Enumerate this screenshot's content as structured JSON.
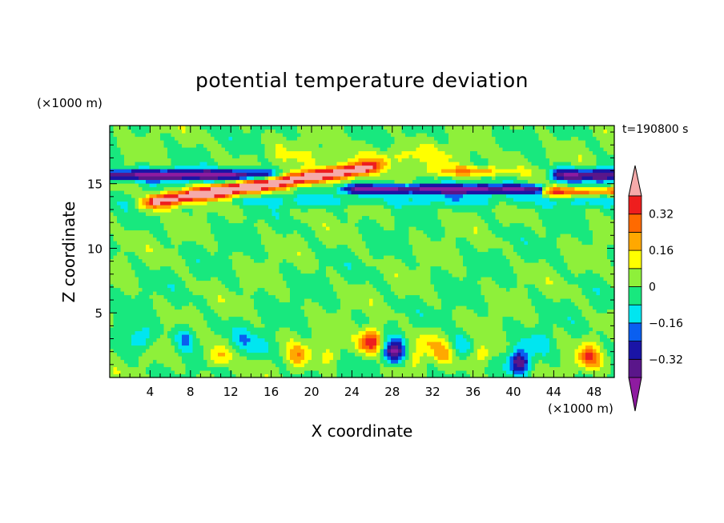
{
  "chart_data": {
    "type": "heatmap",
    "title": "potential temperature deviation",
    "xlabel": "X coordinate",
    "ylabel": "Z coordinate",
    "x_unit": "(×1000 m)",
    "z_unit": "(×1000 m)",
    "time_label": "t=190800 s",
    "xlim": [
      0,
      50
    ],
    "zlim": [
      0,
      19.5
    ],
    "x_ticks": [
      "4",
      "8",
      "12",
      "16",
      "20",
      "24",
      "28",
      "32",
      "36",
      "40",
      "44",
      "48"
    ],
    "z_ticks": [
      "5",
      "10",
      "15"
    ],
    "colorbar": {
      "levels": [
        -0.4,
        -0.32,
        -0.24,
        -0.16,
        -0.08,
        0,
        0.08,
        0.16,
        0.24,
        0.32,
        0.4
      ],
      "tick_labels": [
        "0.32",
        "0.16",
        "0",
        "−0.16",
        "−0.32"
      ],
      "colors": {
        "below": "#8e1ba0",
        "bands": [
          "#5a168a",
          "#1a14a6",
          "#0a5ff0",
          "#00e6f0",
          "#18e87e",
          "#8ef03a",
          "#ffff00",
          "#ffa800",
          "#ff6a00",
          "#ee1e1e"
        ],
        "above": "#f5aaaa"
      }
    },
    "features": [
      {
        "desc": "negative band z~15-16 west",
        "x": [
          0,
          14
        ],
        "z": [
          15.2,
          16.2
        ],
        "value": -0.36
      },
      {
        "desc": "positive tilted band",
        "x": [
          4,
          26
        ],
        "z": [
          13.5,
          16.5
        ],
        "value": 0.42
      },
      {
        "desc": "negative band z~14.5 east",
        "x": [
          23,
          43
        ],
        "z": [
          14.2,
          15.2
        ],
        "value": -0.36
      },
      {
        "desc": "negative band z~15.5 far east",
        "x": [
          44,
          50
        ],
        "z": [
          15.0,
          16.3
        ],
        "value": -0.34
      },
      {
        "desc": "positive band z~16 east",
        "x": [
          31,
          40
        ],
        "z": [
          15.8,
          16.5
        ],
        "value": 0.22
      },
      {
        "desc": "low-level positive cell",
        "x": [
          9.5,
          12
        ],
        "z": [
          0.5,
          3
        ],
        "value": 0.22
      },
      {
        "desc": "low-level positive cell",
        "x": [
          17.5,
          20
        ],
        "z": [
          0.5,
          3
        ],
        "value": 0.18
      },
      {
        "desc": "low-level positive cell",
        "x": [
          24.5,
          27
        ],
        "z": [
          2,
          3.6
        ],
        "value": 0.42
      },
      {
        "desc": "low-level negative cell",
        "x": [
          27,
          29.5
        ],
        "z": [
          0.8,
          3.2
        ],
        "value": -0.4
      },
      {
        "desc": "low-level negative cell",
        "x": [
          39,
          42
        ],
        "z": [
          0.5,
          2
        ],
        "value": -0.34
      },
      {
        "desc": "low-level positive cell",
        "x": [
          46,
          49
        ],
        "z": [
          0.6,
          2.8
        ],
        "value": 0.26
      }
    ]
  }
}
